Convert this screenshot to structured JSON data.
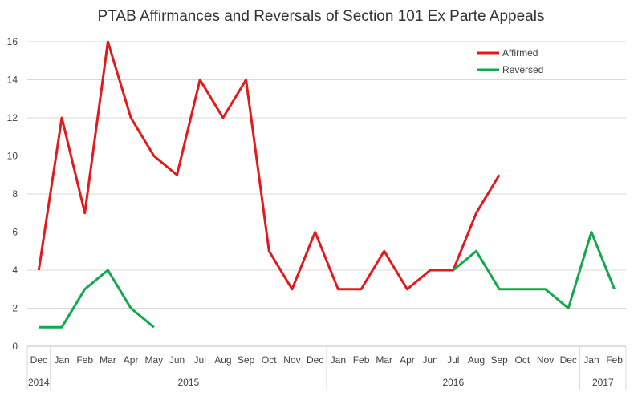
{
  "chart_data": {
    "type": "line",
    "title": "PTAB Affirmances and Reversals of Section 101 Ex Parte Appeals",
    "xlabel": "",
    "ylabel": "",
    "ylim": [
      0,
      16
    ],
    "yticks": [
      0,
      2,
      4,
      6,
      8,
      10,
      12,
      14,
      16
    ],
    "grid": true,
    "legend_position": "top-right",
    "categories": [
      "Dec",
      "Jan",
      "Feb",
      "Mar",
      "Apr",
      "May",
      "Jun",
      "Jul",
      "Aug",
      "Sep",
      "Oct",
      "Nov",
      "Dec",
      "Jan",
      "Feb",
      "Mar",
      "Apr",
      "Jun",
      "Jul",
      "Aug",
      "Sep",
      "Oct",
      "Nov",
      "Dec",
      "Jan",
      "Feb"
    ],
    "year_groups": [
      {
        "label": "2014",
        "start": 0,
        "end": 0
      },
      {
        "label": "2015",
        "start": 1,
        "end": 12
      },
      {
        "label": "2016",
        "start": 13,
        "end": 23
      },
      {
        "label": "2017",
        "start": 24,
        "end": 25
      }
    ],
    "series": [
      {
        "name": "Affirmed",
        "color": "#e31a1c",
        "values": [
          4,
          12,
          7,
          16,
          12,
          10,
          9,
          14,
          12,
          14,
          5,
          3,
          6,
          3,
          3,
          5,
          3,
          4,
          4,
          7,
          9,
          null,
          null,
          null,
          null,
          null
        ]
      },
      {
        "name": "Reversed",
        "color": "#12a84b",
        "values": [
          1,
          1,
          3,
          4,
          2,
          1,
          null,
          null,
          null,
          null,
          null,
          null,
          null,
          null,
          null,
          null,
          null,
          null,
          4,
          5,
          3,
          3,
          3,
          2,
          6,
          3
        ]
      }
    ]
  }
}
